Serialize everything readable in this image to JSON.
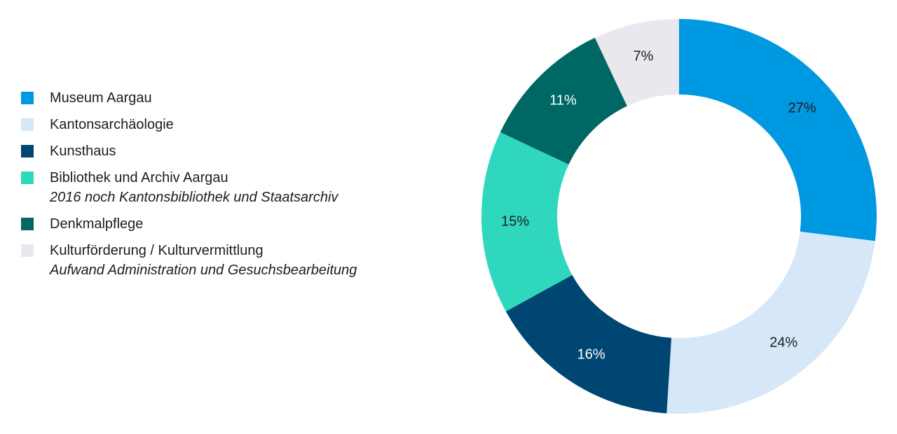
{
  "chart_data": {
    "type": "pie",
    "donut": true,
    "legend_position": "left",
    "series": [
      {
        "name": "Museum Aargau",
        "sublabel": "",
        "value": 27,
        "label": "27%",
        "color": "#0098e0",
        "label_color": "#1d1d1b"
      },
      {
        "name": "Kantonsarchäologie",
        "sublabel": "",
        "value": 24,
        "label": "24%",
        "color": "#d6e8f7",
        "label_color": "#1d1d1b"
      },
      {
        "name": "Kunsthaus",
        "sublabel": "",
        "value": 16,
        "label": "16%",
        "color": "#004673",
        "label_color": "#ffffff"
      },
      {
        "name": "Bibliothek und Archiv Aargau",
        "sublabel": "2016 noch Kantonsbibliothek und Staatsarchiv",
        "value": 15,
        "label": "15%",
        "color": "#2fd8bc",
        "label_color": "#1d1d1b"
      },
      {
        "name": "Denkmalpflege",
        "sublabel": "",
        "value": 11,
        "label": "11%",
        "color": "#006864",
        "label_color": "#ffffff"
      },
      {
        "name": "Kulturförderung / Kulturvermittlung",
        "sublabel": "Aufwand Administration und Gesuchsbearbeitung",
        "value": 7,
        "label": "7%",
        "color": "#ebe7ee",
        "label_color": "#1d1d1b"
      }
    ]
  }
}
